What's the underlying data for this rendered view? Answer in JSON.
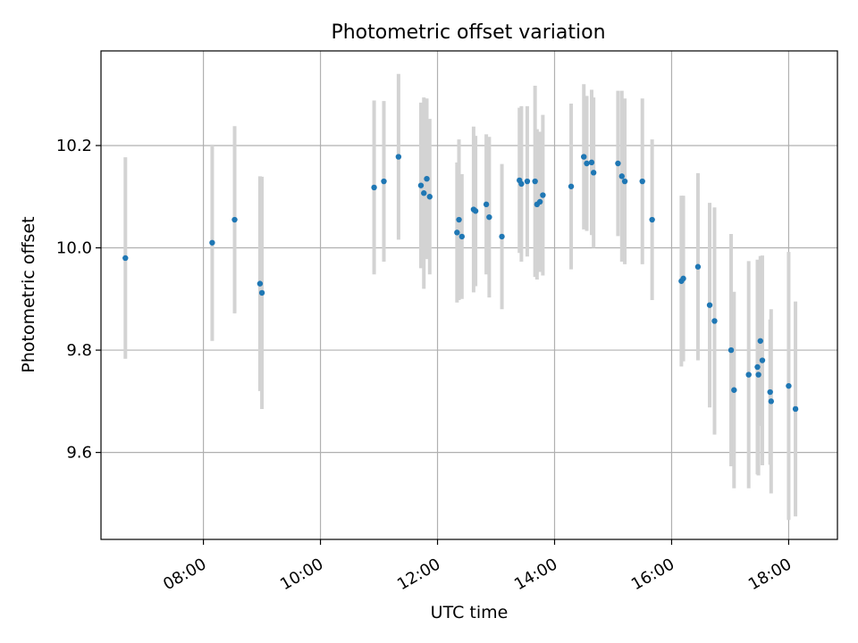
{
  "chart_data": {
    "type": "scatter",
    "title": "Photometric offset variation",
    "xlabel": "UTC time",
    "ylabel": "Photometric offset",
    "x_unit": "hours UTC",
    "xlim": [
      "06:15",
      "18:50"
    ],
    "ylim": [
      9.43,
      10.385
    ],
    "x_ticks": [
      "08:00",
      "10:00",
      "12:00",
      "14:00",
      "16:00",
      "18:00"
    ],
    "y_ticks": [
      "9.6",
      "9.8",
      "10.0",
      "10.2"
    ],
    "grid": true,
    "legend": "none",
    "colors": {
      "points": "#1f77b4",
      "error_bars": "#d3d3d3",
      "grid": "#b0b0b0"
    },
    "points": [
      {
        "t": "06:40",
        "y": 9.98,
        "err": 0.197
      },
      {
        "t": "08:09",
        "y": 10.01,
        "err": 0.192
      },
      {
        "t": "08:32",
        "y": 10.055,
        "err": 0.183
      },
      {
        "t": "08:58",
        "y": 9.93,
        "err": 0.21
      },
      {
        "t": "09:00",
        "y": 9.912,
        "err": 0.227
      },
      {
        "t": "10:55",
        "y": 10.118,
        "err": 0.17
      },
      {
        "t": "11:05",
        "y": 10.13,
        "err": 0.157
      },
      {
        "t": "11:20",
        "y": 10.178,
        "err": 0.162
      },
      {
        "t": "11:43",
        "y": 10.122,
        "err": 0.162
      },
      {
        "t": "11:46",
        "y": 10.107,
        "err": 0.187
      },
      {
        "t": "11:49",
        "y": 10.135,
        "err": 0.157
      },
      {
        "t": "11:52",
        "y": 10.1,
        "err": 0.152
      },
      {
        "t": "12:20",
        "y": 10.03,
        "err": 0.137
      },
      {
        "t": "12:22",
        "y": 10.055,
        "err": 0.157
      },
      {
        "t": "12:25",
        "y": 10.022,
        "err": 0.122
      },
      {
        "t": "12:37",
        "y": 10.075,
        "err": 0.162
      },
      {
        "t": "12:39",
        "y": 10.072,
        "err": 0.147
      },
      {
        "t": "12:50",
        "y": 10.085,
        "err": 0.137
      },
      {
        "t": "12:53",
        "y": 10.06,
        "err": 0.157
      },
      {
        "t": "13:06",
        "y": 10.022,
        "err": 0.142
      },
      {
        "t": "13:24",
        "y": 10.132,
        "err": 0.142
      },
      {
        "t": "13:26",
        "y": 10.125,
        "err": 0.152
      },
      {
        "t": "13:32",
        "y": 10.13,
        "err": 0.147
      },
      {
        "t": "13:40",
        "y": 10.13,
        "err": 0.187
      },
      {
        "t": "13:42",
        "y": 10.085,
        "err": 0.147
      },
      {
        "t": "13:45",
        "y": 10.09,
        "err": 0.137
      },
      {
        "t": "13:48",
        "y": 10.103,
        "err": 0.157
      },
      {
        "t": "14:17",
        "y": 10.12,
        "err": 0.162
      },
      {
        "t": "14:30",
        "y": 10.178,
        "err": 0.142
      },
      {
        "t": "14:33",
        "y": 10.165,
        "err": 0.132
      },
      {
        "t": "14:38",
        "y": 10.167,
        "err": 0.142
      },
      {
        "t": "14:40",
        "y": 10.147,
        "err": 0.147
      },
      {
        "t": "15:05",
        "y": 10.165,
        "err": 0.142
      },
      {
        "t": "15:09",
        "y": 10.14,
        "err": 0.167
      },
      {
        "t": "15:12",
        "y": 10.13,
        "err": 0.162
      },
      {
        "t": "15:30",
        "y": 10.13,
        "err": 0.162
      },
      {
        "t": "15:40",
        "y": 10.055,
        "err": 0.157
      },
      {
        "t": "16:10",
        "y": 9.935,
        "err": 0.167
      },
      {
        "t": "16:12",
        "y": 9.94,
        "err": 0.162
      },
      {
        "t": "16:27",
        "y": 9.963,
        "err": 0.183
      },
      {
        "t": "16:39",
        "y": 9.888,
        "err": 0.2
      },
      {
        "t": "16:44",
        "y": 9.857,
        "err": 0.222
      },
      {
        "t": "17:01",
        "y": 9.8,
        "err": 0.227
      },
      {
        "t": "17:04",
        "y": 9.722,
        "err": 0.192
      },
      {
        "t": "17:19",
        "y": 9.752,
        "err": 0.222
      },
      {
        "t": "17:28",
        "y": 9.767,
        "err": 0.21
      },
      {
        "t": "17:29",
        "y": 9.752,
        "err": 0.197
      },
      {
        "t": "17:31",
        "y": 9.818,
        "err": 0.166
      },
      {
        "t": "17:33",
        "y": 9.78,
        "err": 0.205
      },
      {
        "t": "17:41",
        "y": 9.718,
        "err": 0.142
      },
      {
        "t": "17:42",
        "y": 9.7,
        "err": 0.18
      },
      {
        "t": "18:00",
        "y": 9.73,
        "err": 0.262
      },
      {
        "t": "18:07",
        "y": 9.685,
        "err": 0.21
      }
    ]
  }
}
